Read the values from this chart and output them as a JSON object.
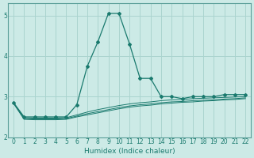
{
  "x": [
    0,
    1,
    2,
    3,
    4,
    5,
    6,
    7,
    8,
    9,
    10,
    11,
    12,
    13,
    14,
    15,
    16,
    17,
    18,
    19,
    20,
    21,
    22
  ],
  "y_main": [
    2.85,
    2.5,
    2.5,
    2.5,
    2.5,
    2.5,
    2.8,
    3.75,
    4.35,
    5.05,
    5.05,
    4.3,
    3.45,
    3.45,
    3.0,
    3.0,
    2.95,
    3.0,
    3.0,
    3.0,
    3.05,
    3.05,
    3.05
  ],
  "y_lower1": [
    2.85,
    2.48,
    2.47,
    2.47,
    2.47,
    2.48,
    2.55,
    2.62,
    2.68,
    2.73,
    2.78,
    2.82,
    2.85,
    2.87,
    2.9,
    2.92,
    2.93,
    2.95,
    2.96,
    2.97,
    2.98,
    2.99,
    3.0
  ],
  "y_lower2": [
    2.84,
    2.46,
    2.45,
    2.45,
    2.45,
    2.46,
    2.52,
    2.58,
    2.63,
    2.68,
    2.73,
    2.77,
    2.8,
    2.82,
    2.85,
    2.87,
    2.88,
    2.9,
    2.91,
    2.92,
    2.94,
    2.95,
    2.97
  ],
  "y_lower3": [
    2.83,
    2.44,
    2.43,
    2.43,
    2.43,
    2.44,
    2.5,
    2.55,
    2.6,
    2.65,
    2.7,
    2.74,
    2.77,
    2.79,
    2.82,
    2.84,
    2.86,
    2.87,
    2.89,
    2.9,
    2.92,
    2.93,
    2.95
  ],
  "line_color": "#1a7a6e",
  "bg_color": "#cceae6",
  "grid_color": "#aad4cf",
  "xlabel": "Humidex (Indice chaleur)",
  "ylim": [
    2.0,
    5.3
  ],
  "xlim": [
    -0.5,
    22.5
  ],
  "yticks": [
    2,
    3,
    4,
    5
  ],
  "xticks": [
    0,
    1,
    2,
    3,
    4,
    5,
    6,
    7,
    8,
    9,
    10,
    11,
    12,
    13,
    14,
    15,
    16,
    17,
    18,
    19,
    20,
    21,
    22
  ]
}
